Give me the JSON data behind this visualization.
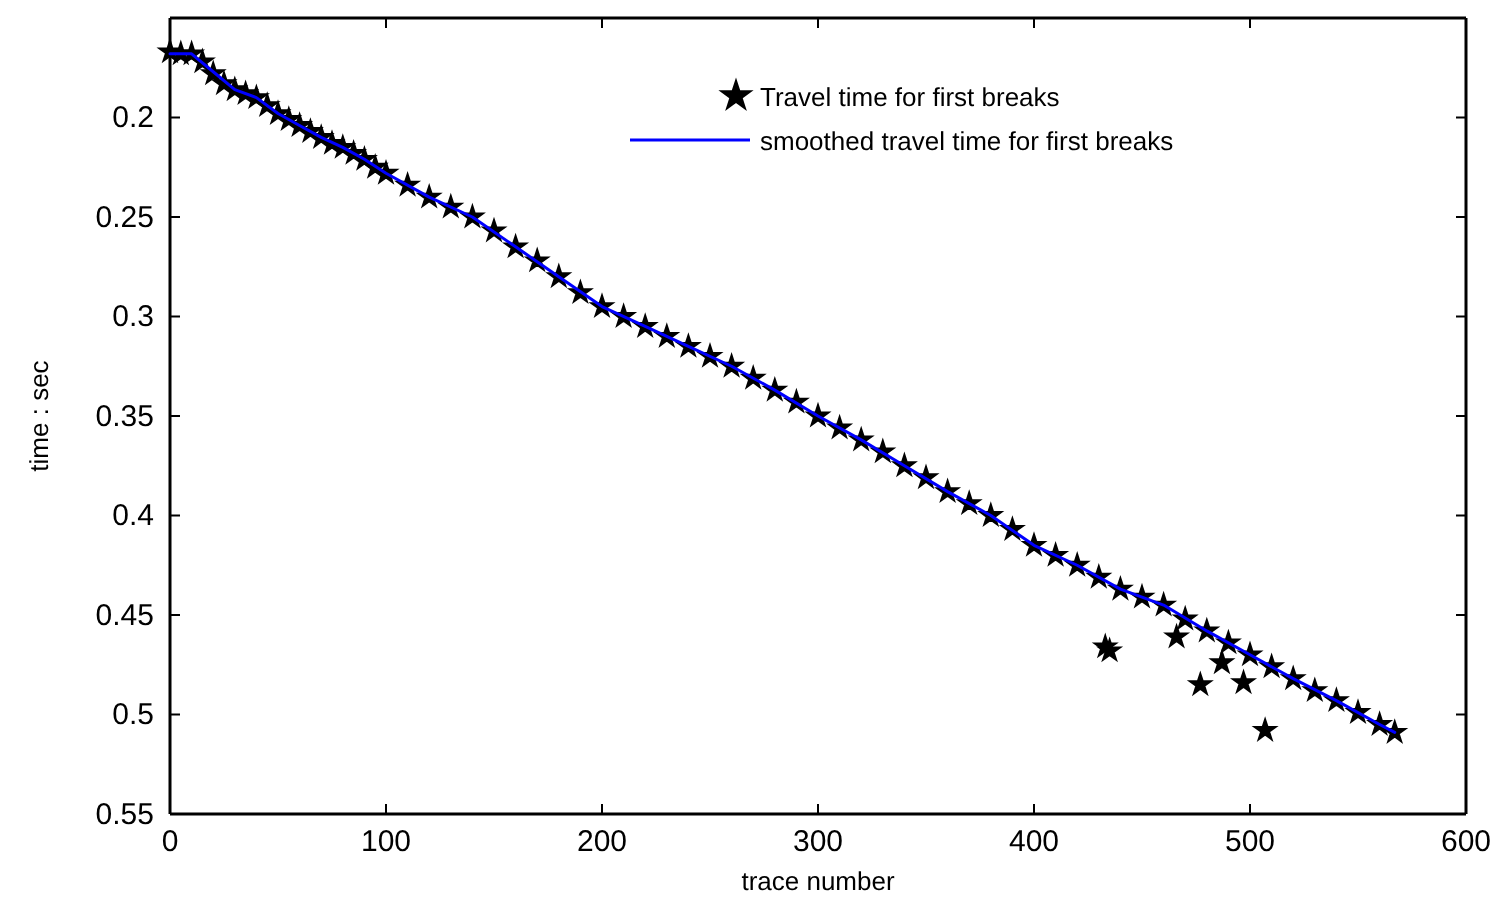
{
  "chart_data": {
    "type": "scatter",
    "xlabel": "trace number",
    "ylabel": "time : sec",
    "xlim": [
      0,
      600
    ],
    "xticks": [
      0,
      100,
      200,
      300,
      400,
      500,
      600
    ],
    "ylim": [
      0.55,
      0.15
    ],
    "yticks": [
      0.2,
      0.25,
      0.3,
      0.35,
      0.4,
      0.45,
      0.5,
      0.55
    ],
    "legend": "top right",
    "grid": false,
    "series": [
      {
        "name": "Travel time for first breaks",
        "marker": "star",
        "color": "#000000",
        "x": [
          0,
          5,
          10,
          15,
          20,
          25,
          30,
          35,
          40,
          45,
          50,
          55,
          60,
          65,
          70,
          75,
          80,
          85,
          90,
          95,
          100,
          110,
          120,
          130,
          140,
          150,
          160,
          170,
          180,
          190,
          200,
          210,
          220,
          230,
          240,
          250,
          260,
          270,
          280,
          290,
          300,
          310,
          320,
          330,
          340,
          350,
          360,
          370,
          380,
          390,
          400,
          410,
          420,
          430,
          433,
          435,
          440,
          450,
          460,
          466,
          470,
          477,
          480,
          487,
          490,
          497,
          500,
          507,
          510,
          520,
          530,
          540,
          550,
          560,
          567
        ],
        "values": [
          0.167,
          0.168,
          0.168,
          0.172,
          0.178,
          0.183,
          0.186,
          0.188,
          0.19,
          0.194,
          0.198,
          0.201,
          0.204,
          0.207,
          0.21,
          0.213,
          0.215,
          0.218,
          0.221,
          0.225,
          0.228,
          0.234,
          0.24,
          0.245,
          0.25,
          0.257,
          0.265,
          0.272,
          0.28,
          0.288,
          0.295,
          0.3,
          0.305,
          0.31,
          0.315,
          0.32,
          0.325,
          0.331,
          0.337,
          0.343,
          0.35,
          0.356,
          0.362,
          0.368,
          0.375,
          0.381,
          0.388,
          0.394,
          0.4,
          0.407,
          0.415,
          0.42,
          0.425,
          0.431,
          0.466,
          0.468,
          0.437,
          0.441,
          0.445,
          0.461,
          0.452,
          0.485,
          0.458,
          0.474,
          0.464,
          0.484,
          0.47,
          0.508,
          0.476,
          0.482,
          0.488,
          0.493,
          0.499,
          0.505,
          0.509
        ]
      },
      {
        "name": "smoothed travel time for first breaks",
        "type": "line",
        "marker": "none",
        "line_style": "solid",
        "color": "#0000ff",
        "x": [
          0,
          10,
          20,
          30,
          40,
          50,
          60,
          70,
          80,
          90,
          100,
          120,
          140,
          160,
          180,
          200,
          220,
          240,
          260,
          280,
          300,
          320,
          340,
          360,
          380,
          400,
          420,
          440,
          460,
          480,
          500,
          520,
          540,
          560,
          567
        ],
        "values": [
          0.168,
          0.168,
          0.177,
          0.186,
          0.19,
          0.198,
          0.204,
          0.21,
          0.215,
          0.221,
          0.228,
          0.24,
          0.25,
          0.265,
          0.28,
          0.295,
          0.305,
          0.315,
          0.325,
          0.337,
          0.35,
          0.362,
          0.375,
          0.388,
          0.4,
          0.415,
          0.425,
          0.437,
          0.445,
          0.458,
          0.47,
          0.482,
          0.493,
          0.505,
          0.509
        ]
      }
    ]
  }
}
